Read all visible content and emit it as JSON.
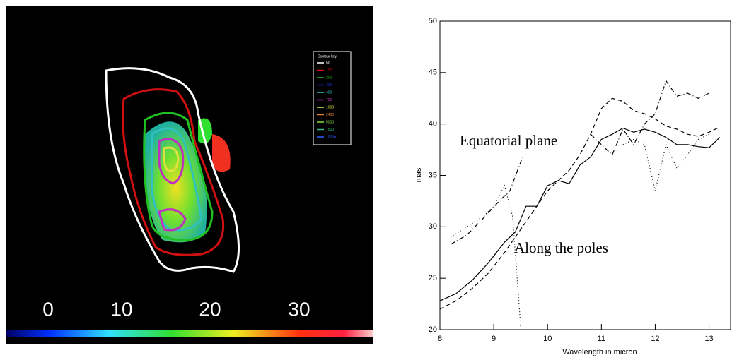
{
  "image": {
    "colorbar_ticks": [
      0,
      10,
      20,
      30
    ],
    "contour_key": {
      "title": "Contour key",
      "levels": [
        50,
        100,
        200,
        300,
        400,
        700,
        1000,
        2400,
        5000,
        7500,
        10000
      ],
      "colors": [
        "#ffffff",
        "#d01010",
        "#20c020",
        "#2030d0",
        "#30c0c0",
        "#c030c0",
        "#e0e040",
        "#e08030",
        "#80e040",
        "#30c080",
        "#3060ff"
      ]
    }
  },
  "chart_data": {
    "type": "line",
    "xlabel": "Wavelength in micron",
    "ylabel": "mas",
    "annotations": [
      "Equatorial plane",
      "Along the poles"
    ],
    "xlim": [
      8,
      13.4
    ],
    "ylim": [
      20,
      50
    ],
    "xticks": [
      8,
      9,
      10,
      11,
      12,
      13
    ],
    "yticks": [
      20,
      25,
      30,
      35,
      40,
      45,
      50
    ],
    "series": [
      {
        "dash": "none",
        "color": "#000000",
        "x": [
          8,
          8.3,
          8.6,
          8.9,
          9.2,
          9.4,
          9.6,
          9.8,
          10,
          10.2,
          10.4,
          10.6,
          10.8,
          11,
          11.2,
          11.4,
          11.6,
          11.8,
          12,
          12.2,
          12.4,
          12.6,
          12.8,
          13,
          13.2
        ],
        "values": [
          22.8,
          23.5,
          24.8,
          26.5,
          28.5,
          29.5,
          32,
          32,
          34,
          34.5,
          34.2,
          36,
          36.8,
          38.5,
          39,
          39.6,
          39.2,
          39.5,
          39.2,
          38.7,
          38,
          38,
          37.8,
          37.7,
          38.7
        ]
      },
      {
        "dash": "6,4",
        "color": "#000000",
        "x": [
          8,
          8.3,
          8.6,
          8.9,
          9.2,
          9.4,
          9.6,
          9.8,
          10,
          10.2,
          10.4,
          10.6,
          10.8,
          11,
          11.2,
          11.4,
          11.6,
          11.8,
          12,
          12.2,
          12.4,
          12.6,
          12.8,
          13,
          13.2
        ],
        "values": [
          22,
          22.8,
          24,
          25.5,
          27.5,
          29,
          30.5,
          32,
          33.5,
          34.5,
          35.5,
          37,
          39,
          41.5,
          42.5,
          42.2,
          41.3,
          41,
          40.5,
          39.8,
          39.5,
          39,
          38.8,
          39.2,
          39.7
        ]
      },
      {
        "dash": "7,3,1,3",
        "color": "#000000",
        "x": [
          8.2,
          8.5,
          8.8,
          9.1,
          9.3,
          9.55,
          10.6,
          10.8,
          11.2,
          11.4,
          11.6,
          11.8,
          12,
          12.2,
          12.4,
          12.6,
          12.8,
          13
        ],
        "values": [
          28.3,
          29.2,
          30.8,
          32.5,
          33.5,
          37,
          null,
          39,
          37,
          39.5,
          38,
          40,
          41,
          44.2,
          42.7,
          43,
          42.5,
          43
        ]
      },
      {
        "dash": "1,3",
        "color": "#000000",
        "x": [
          8.2,
          8.5,
          8.8,
          9,
          9.2,
          9.35,
          9.5,
          11.2,
          11.4,
          11.6,
          11.8,
          12,
          12.2,
          12.4,
          12.6,
          12.8,
          13
        ],
        "values": [
          29,
          30,
          31,
          32,
          34,
          31,
          20.3,
          null,
          38,
          38.5,
          38,
          33.5,
          38,
          35.7,
          37,
          38.5,
          39
        ]
      }
    ]
  }
}
